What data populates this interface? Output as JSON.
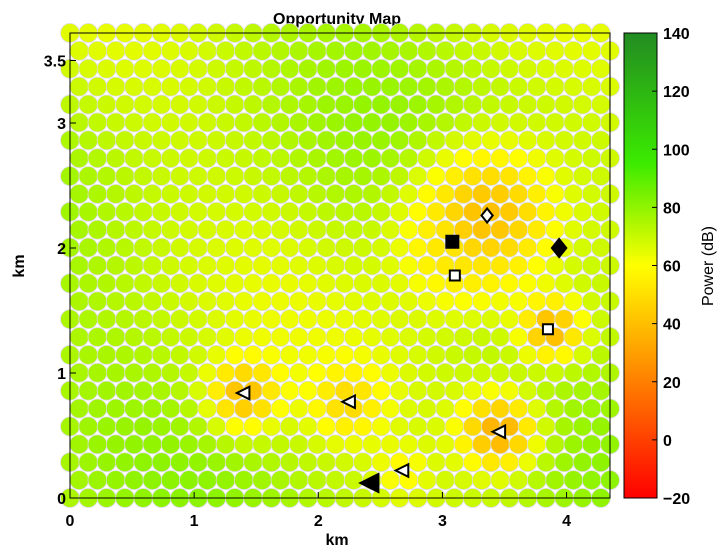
{
  "chart_data": {
    "type": "heatmap",
    "title": "Opportunity Map",
    "xlabel": "km",
    "ylabel": "km",
    "xlim": [
      0,
      4.35
    ],
    "ylim": [
      0,
      3.72
    ],
    "xticks": [
      0,
      1,
      2,
      3,
      4
    ],
    "xtick_labels": [
      "0",
      "1",
      "2",
      "3",
      "4"
    ],
    "yticks": [
      0,
      1,
      2,
      3,
      3.5
    ],
    "ytick_labels": [
      "0",
      "1",
      "2",
      "3",
      "3.5"
    ],
    "grid": false,
    "colorbar": {
      "label": "Power (dB)",
      "range": [
        -20,
        140
      ],
      "ticks": [
        "140",
        "120",
        "100",
        "80",
        "60",
        "40",
        "20",
        "0",
        "−20"
      ],
      "colormap": "red-yellow-green"
    },
    "hex_grid": {
      "background_power_db": 72,
      "rows_approx": 27,
      "cols_approx": 30
    },
    "hotspots": [
      {
        "x": 3.36,
        "y": 2.26,
        "peak_db": 40,
        "radius_km": 0.42
      },
      {
        "x": 3.15,
        "y": 2.0,
        "peak_db": 52,
        "radius_km": 0.3
      },
      {
        "x": 3.88,
        "y": 1.35,
        "peak_db": 38,
        "radius_km": 0.18
      },
      {
        "x": 1.4,
        "y": 0.83,
        "peak_db": 40,
        "radius_km": 0.2
      },
      {
        "x": 2.24,
        "y": 0.77,
        "peak_db": 48,
        "radius_km": 0.2
      },
      {
        "x": 3.45,
        "y": 0.53,
        "peak_db": 35,
        "radius_km": 0.22
      },
      {
        "x": 2.68,
        "y": 0.22,
        "peak_db": 58,
        "radius_km": 0.15
      }
    ],
    "markers": [
      {
        "shape": "diamond",
        "filled": false,
        "x": 3.36,
        "y": 2.26
      },
      {
        "shape": "diamond",
        "filled": true,
        "x": 3.94,
        "y": 2.0
      },
      {
        "shape": "square",
        "filled": true,
        "x": 3.08,
        "y": 2.05
      },
      {
        "shape": "square",
        "filled": false,
        "x": 3.1,
        "y": 1.78
      },
      {
        "shape": "square",
        "filled": false,
        "x": 3.85,
        "y": 1.35
      },
      {
        "shape": "triangle-left",
        "filled": false,
        "x": 1.4,
        "y": 0.84
      },
      {
        "shape": "triangle-left",
        "filled": false,
        "x": 2.25,
        "y": 0.77
      },
      {
        "shape": "triangle-left",
        "filled": false,
        "x": 3.46,
        "y": 0.53
      },
      {
        "shape": "triangle-left",
        "filled": false,
        "x": 2.68,
        "y": 0.22
      },
      {
        "shape": "triangle-left",
        "filled": true,
        "x": 2.42,
        "y": 0.12
      }
    ]
  }
}
